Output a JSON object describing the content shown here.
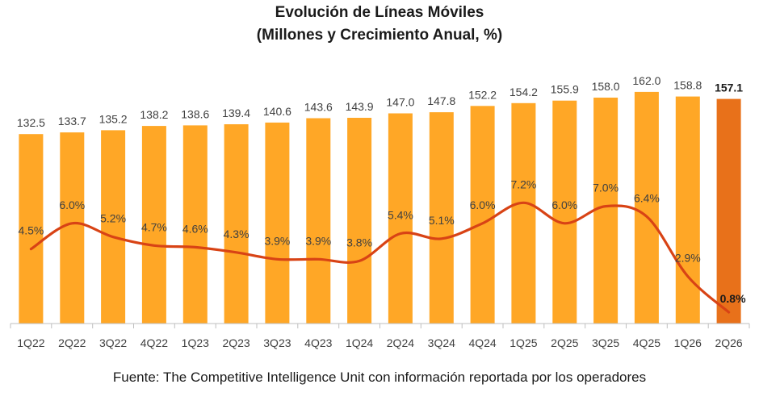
{
  "chart_data": {
    "type": "bar",
    "title": "Evolución de Líneas Móviles",
    "subtitle": "(Millones y Crecimiento Anual, %)",
    "categories": [
      "1Q22",
      "2Q22",
      "3Q22",
      "4Q22",
      "1Q23",
      "2Q23",
      "3Q23",
      "4Q23",
      "1Q24",
      "2Q24",
      "3Q24",
      "4Q24",
      "1Q25",
      "2Q25",
      "3Q25",
      "4Q25",
      "1Q26",
      "2Q26"
    ],
    "series": [
      {
        "type": "bar",
        "values": [
          132.5,
          133.7,
          135.2,
          138.2,
          138.6,
          139.4,
          140.6,
          143.6,
          143.9,
          147.0,
          147.8,
          152.2,
          154.2,
          155.9,
          158.0,
          162.0,
          158.8,
          157.1
        ],
        "labels": [
          "132.5",
          "133.7",
          "135.2",
          "138.2",
          "138.6",
          "139.4",
          "140.6",
          "143.6",
          "143.9",
          "147.0",
          "147.8",
          "152.2",
          "154.2",
          "155.9",
          "158.0",
          "162.0",
          "158.8",
          "157.1"
        ],
        "color": "#FFA726",
        "highlight_color": "#E8711A"
      },
      {
        "type": "line",
        "values": [
          4.5,
          6.0,
          5.2,
          4.7,
          4.6,
          4.3,
          3.9,
          3.9,
          3.8,
          5.4,
          5.1,
          6.0,
          7.2,
          6.0,
          7.0,
          6.4,
          2.9,
          0.8
        ],
        "labels": [
          "4.5%",
          "6.0%",
          "5.2%",
          "4.7%",
          "4.6%",
          "4.3%",
          "3.9%",
          "3.9%",
          "3.8%",
          "5.4%",
          "5.1%",
          "6.0%",
          "7.2%",
          "6.0%",
          "7.0%",
          "6.4%",
          "2.9%",
          "0.8%"
        ],
        "color": "#D84315"
      }
    ],
    "highlight_index": 17,
    "grid": false,
    "legend": "none"
  },
  "source": "Fuente: The Competitive Intelligence Unit con información reportada por los operadores",
  "colors": {
    "bar": "#FFA726",
    "bar_highlight": "#E8711A",
    "line": "#D84315",
    "axis": "#bfbfbf",
    "text": "#404040"
  }
}
